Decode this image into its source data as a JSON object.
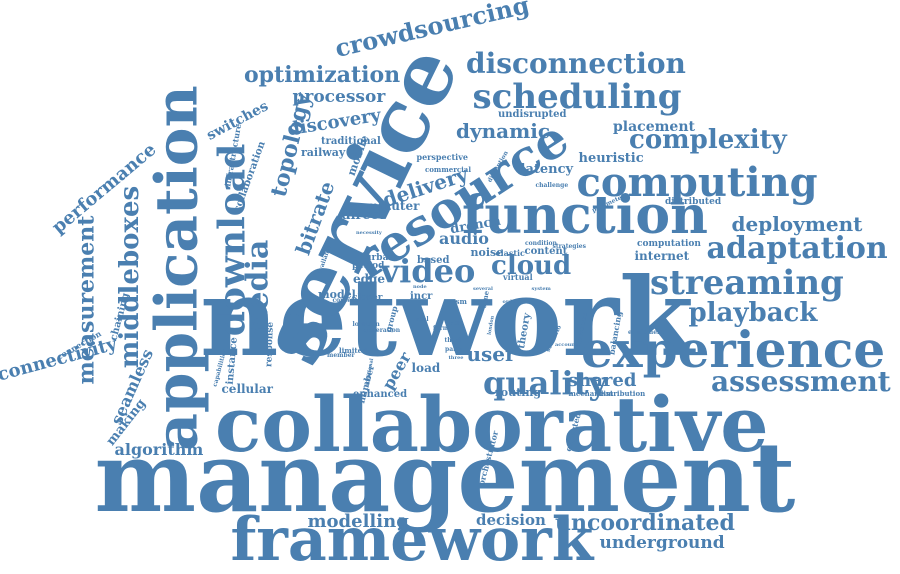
{
  "theme": {
    "word_color": "#4a7fb0",
    "background": "#ffffff"
  },
  "words": [
    {
      "id": "management",
      "text": "management",
      "weight": 100
    },
    {
      "id": "collaborative",
      "text": "collaborative",
      "weight": 92
    },
    {
      "id": "network",
      "text": "network",
      "weight": 95
    },
    {
      "id": "service",
      "text": "service",
      "weight": 80
    },
    {
      "id": "framework",
      "text": "framework",
      "weight": 62
    },
    {
      "id": "application",
      "text": "application",
      "weight": 64
    },
    {
      "id": "resource",
      "text": "resource",
      "weight": 55
    },
    {
      "id": "function",
      "text": "function",
      "weight": 52
    },
    {
      "id": "experience",
      "text": "experience",
      "weight": 50
    },
    {
      "id": "computing",
      "text": "computing",
      "weight": 42
    },
    {
      "id": "download",
      "text": "download",
      "weight": 38
    },
    {
      "id": "scheduling",
      "text": "scheduling",
      "weight": 37
    },
    {
      "id": "streaming",
      "text": "streaming",
      "weight": 34
    },
    {
      "id": "adaptation",
      "text": "adaptation",
      "weight": 32
    },
    {
      "id": "quality",
      "text": "quality",
      "weight": 32
    },
    {
      "id": "media",
      "text": "media",
      "weight": 30
    },
    {
      "id": "video",
      "text": "video",
      "weight": 32
    },
    {
      "id": "assessment",
      "text": "assessment",
      "weight": 28
    },
    {
      "id": "disconnection",
      "text": "disconnection",
      "weight": 28
    },
    {
      "id": "complexity",
      "text": "complexity",
      "weight": 27
    },
    {
      "id": "playback",
      "text": "playback",
      "weight": 27
    },
    {
      "id": "cloud",
      "text": "cloud",
      "weight": 27
    },
    {
      "id": "middleboxes",
      "text": "middleboxes",
      "weight": 26
    },
    {
      "id": "measurement",
      "text": "measurement",
      "weight": 24
    },
    {
      "id": "crowdsourcing",
      "text": "crowdsourcing",
      "weight": 24
    },
    {
      "id": "optimization",
      "text": "optimization",
      "weight": 22
    },
    {
      "id": "topology",
      "text": "topology",
      "weight": 22
    },
    {
      "id": "uncoordinated",
      "text": "uncoordinated",
      "weight": 22
    },
    {
      "id": "deployment",
      "text": "deployment",
      "weight": 20
    },
    {
      "id": "bitrate",
      "text": "bitrate",
      "weight": 20
    },
    {
      "id": "delivery",
      "text": "delivery",
      "weight": 20
    },
    {
      "id": "dynamic",
      "text": "dynamic",
      "weight": 20
    },
    {
      "id": "user",
      "text": "user",
      "weight": 20
    },
    {
      "id": "performance",
      "text": "performance",
      "weight": 19
    },
    {
      "id": "connectivity",
      "text": "connectivity",
      "weight": 18
    },
    {
      "id": "discovery",
      "text": "discovery",
      "weight": 18
    },
    {
      "id": "shared",
      "text": "shared",
      "weight": 18
    },
    {
      "id": "modelling",
      "text": "modelling",
      "weight": 18
    },
    {
      "id": "underground",
      "text": "underground",
      "weight": 17
    },
    {
      "id": "processor",
      "text": "processor",
      "weight": 17
    },
    {
      "id": "algorithm",
      "text": "algorithm",
      "weight": 16
    },
    {
      "id": "seamless",
      "text": "seamless",
      "weight": 16
    },
    {
      "id": "audio",
      "text": "audio",
      "weight": 16
    },
    {
      "id": "peer",
      "text": "peer",
      "weight": 16
    },
    {
      "id": "decision",
      "text": "decision",
      "weight": 15
    },
    {
      "id": "switches",
      "text": "switches",
      "weight": 14
    },
    {
      "id": "placement",
      "text": "placement",
      "weight": 14
    },
    {
      "id": "heuristic",
      "text": "heuristic",
      "weight": 13
    },
    {
      "id": "latency",
      "text": "latency",
      "weight": 13
    },
    {
      "id": "direct",
      "text": "direct",
      "weight": 13
    },
    {
      "id": "drench",
      "text": "drench",
      "weight": 13
    },
    {
      "id": "making",
      "text": "making",
      "weight": 13
    },
    {
      "id": "commuter",
      "text": "commuter",
      "weight": 12
    },
    {
      "id": "internet",
      "text": "internet",
      "weight": 12
    },
    {
      "id": "cellular",
      "text": "cellular",
      "weight": 12
    },
    {
      "id": "load",
      "text": "load",
      "weight": 12
    },
    {
      "id": "edge",
      "text": "edge",
      "weight": 12
    },
    {
      "id": "railway",
      "text": "railway",
      "weight": 11
    },
    {
      "id": "mobile",
      "text": "mobile",
      "weight": 11
    },
    {
      "id": "noise",
      "text": "noise",
      "weight": 11
    },
    {
      "id": "routing",
      "text": "routing",
      "weight": 11
    },
    {
      "id": "model",
      "text": "model",
      "weight": 11
    },
    {
      "id": "content",
      "text": "content",
      "weight": 10
    },
    {
      "id": "chaining",
      "text": "chaining",
      "weight": 10
    },
    {
      "id": "undisrupted",
      "text": "undisrupted",
      "weight": 10
    },
    {
      "id": "collaboration",
      "text": "collaboration",
      "weight": 10
    },
    {
      "id": "enhanced",
      "text": "enhanced",
      "weight": 10
    },
    {
      "id": "instance",
      "text": "instance",
      "weight": 10
    },
    {
      "id": "theory",
      "text": "theory",
      "weight": 10
    },
    {
      "id": "traditional",
      "text": "traditional",
      "weight": 10
    },
    {
      "id": "based",
      "text": "based",
      "weight": 10
    },
    {
      "id": "incr",
      "text": "incr",
      "weight": 10
    },
    {
      "id": "urban",
      "text": "urban",
      "weight": 9
    },
    {
      "id": "period",
      "text": "period",
      "weight": 9
    },
    {
      "id": "closer",
      "text": "closer",
      "weight": 9
    },
    {
      "id": "number",
      "text": "number",
      "weight": 9
    },
    {
      "id": "distributed",
      "text": "distributed",
      "weight": 9
    },
    {
      "id": "computation",
      "text": "computation",
      "weight": 9
    },
    {
      "id": "response",
      "text": "response",
      "weight": 9
    },
    {
      "id": "infrastructure",
      "text": "infrastructure",
      "weight": 8
    },
    {
      "id": "perspective",
      "text": "perspective",
      "weight": 8
    },
    {
      "id": "balancing",
      "text": "balancing",
      "weight": 8
    },
    {
      "id": "group",
      "text": "group",
      "weight": 8
    },
    {
      "id": "connection",
      "text": "connection",
      "weight": 8
    },
    {
      "id": "orchestrator",
      "text": "orchestrator",
      "weight": 8
    },
    {
      "id": "expected",
      "text": "expected",
      "weight": 8
    },
    {
      "id": "virtual",
      "text": "virtual",
      "weight": 8
    },
    {
      "id": "elastic",
      "text": "elastic",
      "weight": 8
    },
    {
      "id": "commercial",
      "text": "commercial",
      "weight": 7
    },
    {
      "id": "time",
      "text": "time",
      "weight": 7
    },
    {
      "id": "limited",
      "text": "limited",
      "weight": 7
    },
    {
      "id": "mechanism",
      "text": "mechanism",
      "weight": 7
    },
    {
      "id": "distribution",
      "text": "distribution",
      "weight": 7
    },
    {
      "id": "sm",
      "text": "sm",
      "weight": 7
    },
    {
      "id": "equipment",
      "text": "equipment",
      "weight": 6
    },
    {
      "id": "capabilities",
      "text": "capabilities",
      "weight": 6
    },
    {
      "id": "scenario",
      "text": "scenario",
      "weight": 6
    },
    {
      "id": "strategies",
      "text": "strategies",
      "weight": 6
    },
    {
      "id": "disruption",
      "text": "disruption",
      "weight": 6
    },
    {
      "id": "parameter",
      "text": "parameter",
      "weight": 6
    },
    {
      "id": "movement",
      "text": "movement",
      "weight": 6
    },
    {
      "id": "challenge",
      "text": "challenge",
      "weight": 6
    },
    {
      "id": "member",
      "text": "member",
      "weight": 6
    },
    {
      "id": "real",
      "text": "real",
      "weight": 6
    },
    {
      "id": "form",
      "text": "form",
      "weight": 6
    },
    {
      "id": "third",
      "text": "third",
      "weight": 6
    },
    {
      "id": "party",
      "text": "party",
      "weight": 6
    },
    {
      "id": "data",
      "text": "data",
      "weight": 6
    },
    {
      "id": "location",
      "text": "location",
      "weight": 6
    },
    {
      "id": "generation",
      "text": "generation",
      "weight": 6
    },
    {
      "id": "context",
      "text": "context",
      "weight": 6
    },
    {
      "id": "available",
      "text": "available",
      "weight": 6
    },
    {
      "id": "condition",
      "text": "condition",
      "weight": 6
    },
    {
      "id": "necessity",
      "text": "necessity",
      "weight": 5
    },
    {
      "id": "several",
      "text": "several",
      "weight": 5
    },
    {
      "id": "order",
      "text": "order",
      "weight": 5
    },
    {
      "id": "london",
      "text": "london",
      "weight": 5
    },
    {
      "id": "node",
      "text": "node",
      "weight": 5
    },
    {
      "id": "increase",
      "text": "increase",
      "weight": 5
    },
    {
      "id": "additional",
      "text": "additional",
      "weight": 5
    },
    {
      "id": "three",
      "text": "three",
      "weight": 5
    },
    {
      "id": "account",
      "text": "account",
      "weight": 5
    },
    {
      "id": "system",
      "text": "system",
      "weight": 5
    }
  ]
}
